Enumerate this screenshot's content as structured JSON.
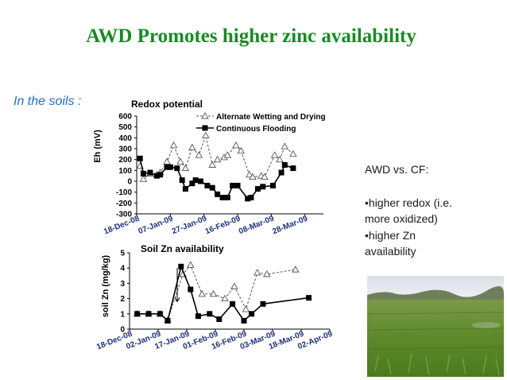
{
  "title": "AWD Promotes higher zinc availability",
  "subtitle": "In the soils :",
  "side_text": {
    "heading": "AWD vs. CF:",
    "lines": [
      "•higher redox (i.e.",
      "more oxidized)",
      "•higher Zn",
      "availability"
    ]
  },
  "photo": {
    "icon": "rice-field-photo"
  },
  "colors": {
    "title": "#1a8a24",
    "subtitle": "#1f6fc4",
    "awd": "#555555",
    "cf": "#000000"
  },
  "chart_data": [
    {
      "type": "line",
      "title": "Redox potential",
      "ylabel": "Eh (mV)",
      "ylim": [
        -300,
        600
      ],
      "yticks": [
        600,
        500,
        400,
        300,
        200,
        100,
        0,
        -100,
        -200,
        -300
      ],
      "xrange": [
        "2008-12-18",
        "2009-04-08"
      ],
      "xticks": [
        {
          "date": "2008-12-18",
          "label": "18-Dec-08"
        },
        {
          "date": "2009-01-07",
          "label": "07-Jan-09"
        },
        {
          "date": "2009-01-27",
          "label": "27-Jan-09"
        },
        {
          "date": "2009-02-16",
          "label": "16-Feb-09"
        },
        {
          "date": "2009-03-08",
          "label": "08-Mar-09"
        },
        {
          "date": "2009-03-28",
          "label": "28-Mar-09"
        }
      ],
      "legend": "top-right",
      "grid": false,
      "series": [
        {
          "name": "Alternate Wetting and Drying",
          "marker": "open-triangle",
          "line": "dashed",
          "points": [
            [
              "2008-12-20",
              140
            ],
            [
              "2008-12-22",
              20
            ],
            [
              "2008-12-26",
              70
            ],
            [
              "2008-12-30",
              60
            ],
            [
              "2009-01-01",
              80
            ],
            [
              "2009-01-05",
              180
            ],
            [
              "2009-01-09",
              330
            ],
            [
              "2009-01-13",
              180
            ],
            [
              "2009-01-16",
              120
            ],
            [
              "2009-01-20",
              310
            ],
            [
              "2009-01-24",
              240
            ],
            [
              "2009-01-28",
              420
            ],
            [
              "2009-02-01",
              150
            ],
            [
              "2009-02-04",
              200
            ],
            [
              "2009-02-08",
              220
            ],
            [
              "2009-02-10",
              240
            ],
            [
              "2009-02-15",
              330
            ],
            [
              "2009-02-18",
              280
            ],
            [
              "2009-02-23",
              60
            ],
            [
              "2009-02-25",
              40
            ],
            [
              "2009-03-02",
              50
            ],
            [
              "2009-03-04",
              40
            ],
            [
              "2009-03-10",
              240
            ],
            [
              "2009-03-13",
              200
            ],
            [
              "2009-03-16",
              320
            ],
            [
              "2009-03-21",
              250
            ]
          ]
        },
        {
          "name": "Continuous Flooding",
          "marker": "filled-square",
          "line": "solid",
          "points": [
            [
              "2008-12-20",
              210
            ],
            [
              "2008-12-22",
              70
            ],
            [
              "2008-12-26",
              80
            ],
            [
              "2008-12-30",
              50
            ],
            [
              "2009-01-01",
              60
            ],
            [
              "2009-01-05",
              130
            ],
            [
              "2009-01-07",
              130
            ],
            [
              "2009-01-11",
              120
            ],
            [
              "2009-01-14",
              10
            ],
            [
              "2009-01-16",
              -70
            ],
            [
              "2009-01-20",
              -20
            ],
            [
              "2009-01-22",
              10
            ],
            [
              "2009-01-25",
              0
            ],
            [
              "2009-01-29",
              -40
            ],
            [
              "2009-02-01",
              -60
            ],
            [
              "2009-02-04",
              -120
            ],
            [
              "2009-02-07",
              -150
            ],
            [
              "2009-02-10",
              -150
            ],
            [
              "2009-02-13",
              -40
            ],
            [
              "2009-02-16",
              -40
            ],
            [
              "2009-02-22",
              -160
            ],
            [
              "2009-02-24",
              -150
            ],
            [
              "2009-02-28",
              -70
            ],
            [
              "2009-03-03",
              -50
            ],
            [
              "2009-03-09",
              -40
            ],
            [
              "2009-03-14",
              80
            ],
            [
              "2009-03-16",
              150
            ],
            [
              "2009-03-21",
              120
            ]
          ]
        }
      ]
    },
    {
      "type": "line",
      "title": "Soil Zn availability",
      "ylabel": "soil Zn (mg/kg)",
      "ylim": [
        0,
        5
      ],
      "yticks": [
        5,
        4,
        3,
        2,
        1,
        0
      ],
      "xrange": [
        "2008-12-18",
        "2009-04-02"
      ],
      "xticks": [
        {
          "date": "2008-12-18",
          "label": "18-Dec-08"
        },
        {
          "date": "2009-01-02",
          "label": "02-Jan-09"
        },
        {
          "date": "2009-01-17",
          "label": "17-Jan-09"
        },
        {
          "date": "2009-02-01",
          "label": "01-Feb-09"
        },
        {
          "date": "2009-02-16",
          "label": "16-Feb-09"
        },
        {
          "date": "2009-03-03",
          "label": "03-Mar-09"
        },
        {
          "date": "2009-03-18",
          "label": "18-Mar-09"
        },
        {
          "date": "2009-04-02",
          "label": "02-Apr-09"
        }
      ],
      "grid": false,
      "annotation": "downward arrow near 17-Jan-09",
      "series": [
        {
          "name": "Alternate Wetting and Drying",
          "marker": "open-triangle",
          "line": "dashed",
          "points": [
            [
              "2008-12-22",
              1.0
            ],
            [
              "2008-12-28",
              1.0
            ],
            [
              "2009-01-03",
              1.0
            ],
            [
              "2009-01-07",
              0.6
            ],
            [
              "2009-01-15",
              3.6
            ],
            [
              "2009-01-19",
              4.2
            ],
            [
              "2009-01-25",
              2.3
            ],
            [
              "2009-01-31",
              2.3
            ],
            [
              "2009-02-06",
              2.0
            ],
            [
              "2009-02-11",
              2.8
            ],
            [
              "2009-02-17",
              1.3
            ],
            [
              "2009-02-23",
              3.7
            ],
            [
              "2009-02-28",
              3.6
            ],
            [
              "2009-03-15",
              3.9
            ]
          ]
        },
        {
          "name": "Continuous Flooding",
          "marker": "filled-square",
          "line": "solid",
          "points": [
            [
              "2008-12-22",
              1.0
            ],
            [
              "2008-12-28",
              1.0
            ],
            [
              "2009-01-03",
              1.0
            ],
            [
              "2009-01-07",
              0.55
            ],
            [
              "2009-01-14",
              4.1
            ],
            [
              "2009-01-19",
              2.6
            ],
            [
              "2009-01-23",
              0.85
            ],
            [
              "2009-01-29",
              1.0
            ],
            [
              "2009-02-03",
              0.65
            ],
            [
              "2009-02-10",
              1.65
            ],
            [
              "2009-02-16",
              0.55
            ],
            [
              "2009-02-20",
              1.0
            ],
            [
              "2009-02-26",
              1.65
            ],
            [
              "2009-03-22",
              2.05
            ]
          ]
        }
      ]
    }
  ]
}
